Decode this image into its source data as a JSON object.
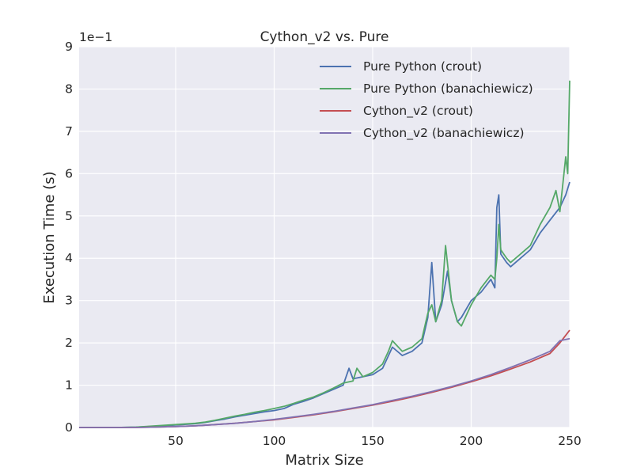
{
  "chart_data": {
    "type": "line",
    "title": "Cython_v2 vs. Pure",
    "xlabel": "Matrix Size",
    "ylabel": "Execution Time (s)",
    "y_scale_label": "1e−1",
    "xlim": [
      1,
      250
    ],
    "ylim": [
      0,
      9
    ],
    "xticks": [
      50,
      100,
      150,
      200,
      250
    ],
    "yticks": [
      0,
      1,
      2,
      3,
      4,
      5,
      6,
      7,
      8,
      9
    ],
    "grid": true,
    "legend_position": "top-right",
    "series": [
      {
        "name": "Pure Python (crout)",
        "color": "#4c72b0",
        "x": [
          1,
          10,
          20,
          30,
          40,
          50,
          60,
          65,
          70,
          75,
          80,
          85,
          90,
          95,
          100,
          105,
          110,
          115,
          120,
          125,
          130,
          135,
          138,
          140,
          145,
          150,
          155,
          160,
          165,
          170,
          175,
          178,
          180,
          182,
          185,
          188,
          190,
          193,
          195,
          200,
          205,
          210,
          212,
          213,
          214,
          215,
          218,
          220,
          225,
          230,
          235,
          240,
          245,
          248,
          250
        ],
        "values": [
          0.0,
          0.0,
          0.0,
          0.01,
          0.03,
          0.06,
          0.09,
          0.12,
          0.16,
          0.2,
          0.25,
          0.29,
          0.33,
          0.37,
          0.4,
          0.45,
          0.55,
          0.62,
          0.7,
          0.8,
          0.9,
          1.0,
          1.4,
          1.15,
          1.2,
          1.25,
          1.4,
          1.9,
          1.7,
          1.8,
          2.0,
          2.6,
          3.9,
          2.5,
          2.9,
          3.7,
          3.0,
          2.5,
          2.6,
          3.0,
          3.2,
          3.5,
          3.3,
          5.2,
          5.5,
          4.1,
          3.9,
          3.8,
          4.0,
          4.2,
          4.6,
          4.9,
          5.2,
          5.5,
          5.8
        ]
      },
      {
        "name": "Pure Python (banachiewicz)",
        "color": "#55a868",
        "x": [
          1,
          10,
          20,
          30,
          40,
          50,
          60,
          65,
          70,
          75,
          80,
          85,
          90,
          95,
          100,
          105,
          110,
          115,
          120,
          125,
          130,
          135,
          140,
          142,
          145,
          150,
          155,
          158,
          160,
          165,
          170,
          175,
          178,
          180,
          182,
          185,
          187,
          190,
          193,
          195,
          200,
          205,
          210,
          212,
          213,
          214,
          215,
          218,
          220,
          225,
          230,
          235,
          240,
          243,
          245,
          248,
          249,
          250
        ],
        "values": [
          0.0,
          0.0,
          0.0,
          0.01,
          0.04,
          0.07,
          0.1,
          0.13,
          0.17,
          0.22,
          0.27,
          0.31,
          0.36,
          0.4,
          0.45,
          0.5,
          0.57,
          0.65,
          0.72,
          0.82,
          0.93,
          1.05,
          1.1,
          1.4,
          1.2,
          1.3,
          1.5,
          1.8,
          2.05,
          1.8,
          1.9,
          2.1,
          2.7,
          2.9,
          2.5,
          3.0,
          4.3,
          3.0,
          2.5,
          2.4,
          2.9,
          3.3,
          3.6,
          3.5,
          4.0,
          4.8,
          4.2,
          4.0,
          3.9,
          4.1,
          4.3,
          4.8,
          5.2,
          5.6,
          5.1,
          6.4,
          6.0,
          8.2
        ]
      },
      {
        "name": "Cython_v2 (crout)",
        "color": "#c44e52",
        "x": [
          1,
          10,
          20,
          30,
          40,
          50,
          60,
          70,
          80,
          90,
          100,
          110,
          120,
          130,
          140,
          150,
          160,
          170,
          180,
          190,
          200,
          210,
          220,
          230,
          240,
          245,
          250
        ],
        "values": [
          0.0,
          0.0,
          0.0,
          0.0,
          0.01,
          0.02,
          0.04,
          0.07,
          0.1,
          0.14,
          0.18,
          0.24,
          0.3,
          0.37,
          0.45,
          0.53,
          0.62,
          0.72,
          0.83,
          0.95,
          1.08,
          1.22,
          1.38,
          1.55,
          1.75,
          2.0,
          2.3
        ]
      },
      {
        "name": "Cython_v2 (banachiewicz)",
        "color": "#8172b2",
        "x": [
          1,
          10,
          20,
          30,
          40,
          50,
          60,
          70,
          80,
          90,
          100,
          110,
          120,
          130,
          140,
          150,
          160,
          170,
          180,
          190,
          200,
          210,
          220,
          230,
          240,
          245,
          250
        ],
        "values": [
          0.0,
          0.0,
          0.0,
          0.0,
          0.01,
          0.02,
          0.04,
          0.07,
          0.1,
          0.14,
          0.19,
          0.25,
          0.31,
          0.38,
          0.46,
          0.54,
          0.64,
          0.74,
          0.85,
          0.97,
          1.1,
          1.25,
          1.42,
          1.6,
          1.8,
          2.05,
          2.1
        ]
      }
    ]
  }
}
